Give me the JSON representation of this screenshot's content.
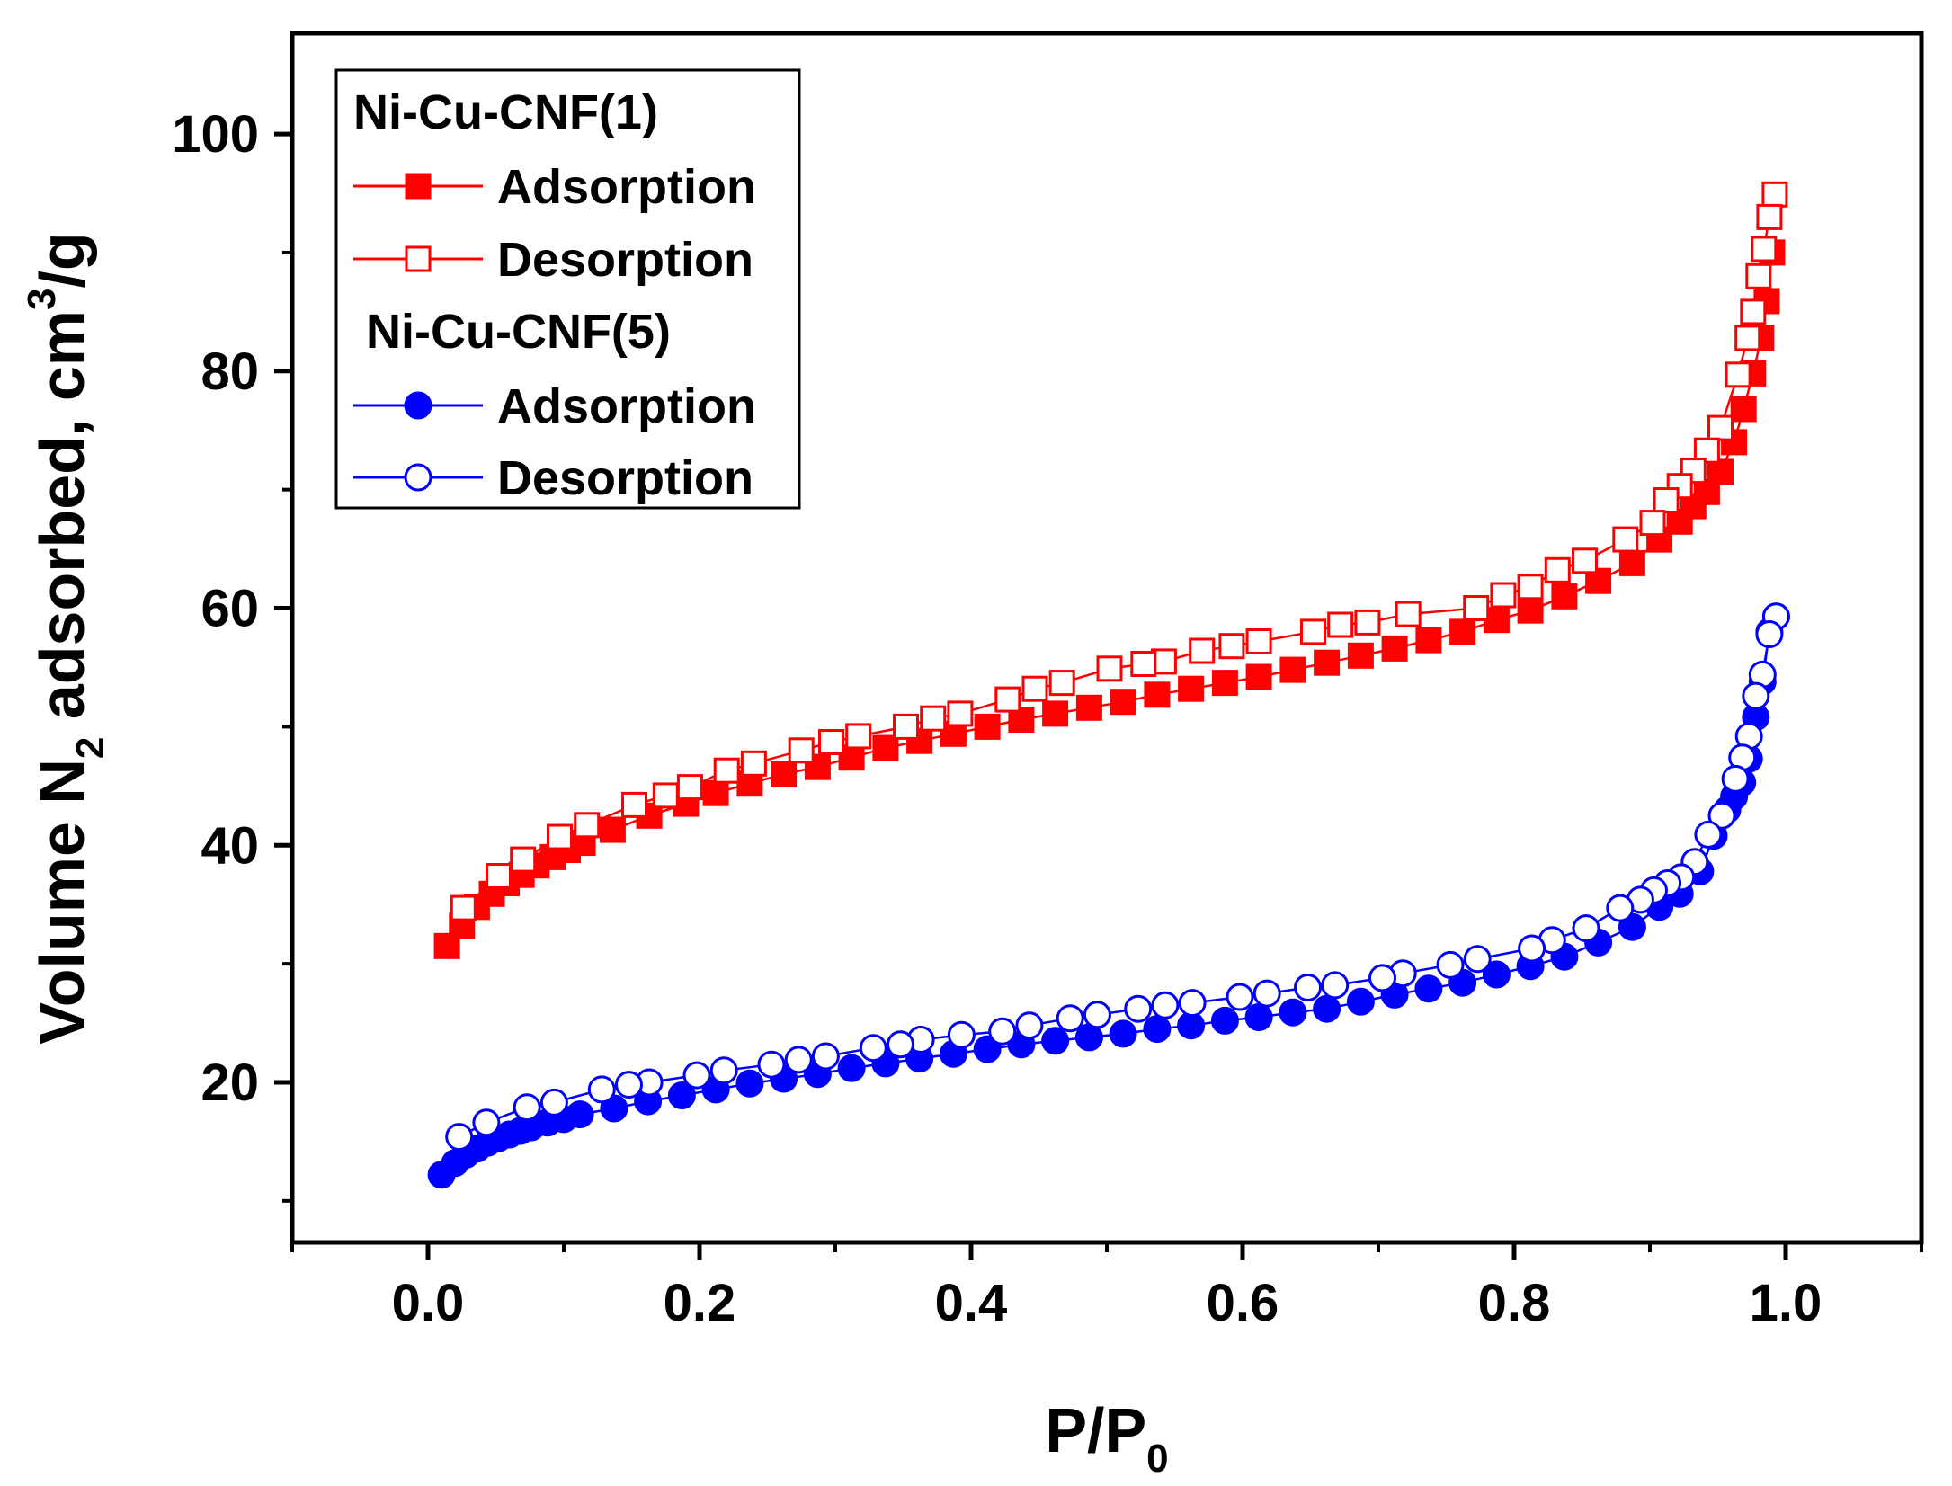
{
  "chart_data": {
    "type": "line",
    "title": "",
    "xlabel": {
      "main": "P/P",
      "sub": "0"
    },
    "ylabel": {
      "pre": "Volume N",
      "sub": "2",
      "mid": " adsorbed, cm",
      "sup": "3",
      "post": "/g"
    },
    "xlim": [
      -0.1,
      1.1
    ],
    "ylim": [
      6.5,
      108.5
    ],
    "x_ticks": [
      0.0,
      0.2,
      0.4,
      0.6,
      0.8,
      1.0
    ],
    "x_tick_labels": [
      "0.0",
      "0.2",
      "0.4",
      "0.6",
      "0.8",
      "1.0"
    ],
    "y_ticks": [
      20,
      40,
      60,
      80,
      100
    ],
    "y_tick_labels": [
      "20",
      "40",
      "60",
      "80",
      "100"
    ],
    "y_minor_ticks": [
      10,
      30,
      50,
      70,
      90
    ],
    "legend": {
      "placement": "top-left",
      "groups": [
        {
          "title": "Ni-Cu-CNF(1)",
          "entries": [
            "Adsorption",
            "Desorption"
          ]
        },
        {
          "title": "Ni-Cu-CNF(5)",
          "entries": [
            "Adsorption",
            "Desorption"
          ]
        }
      ]
    },
    "series": [
      {
        "name": "Ni-Cu-CNF(1) Adsorption",
        "color": "#ff0000",
        "marker": "square",
        "filled": true,
        "x": [
          0.014,
          0.025,
          0.036,
          0.047,
          0.058,
          0.069,
          0.08,
          0.092,
          0.103,
          0.114,
          0.136,
          0.163,
          0.19,
          0.212,
          0.237,
          0.262,
          0.287,
          0.312,
          0.337,
          0.362,
          0.387,
          0.412,
          0.437,
          0.462,
          0.487,
          0.512,
          0.537,
          0.562,
          0.587,
          0.612,
          0.637,
          0.662,
          0.687,
          0.712,
          0.737,
          0.762,
          0.787,
          0.812,
          0.837,
          0.862,
          0.887,
          0.907,
          0.922,
          0.932,
          0.942,
          0.952,
          0.962,
          0.969,
          0.976,
          0.982,
          0.986,
          0.99
        ],
        "y": [
          31.5,
          33.2,
          34.8,
          35.9,
          36.8,
          37.5,
          38.3,
          39.0,
          39.6,
          40.2,
          41.3,
          42.5,
          43.5,
          44.4,
          45.2,
          46.0,
          46.6,
          47.4,
          48.2,
          48.8,
          49.4,
          50.0,
          50.6,
          51.1,
          51.6,
          52.1,
          52.7,
          53.2,
          53.7,
          54.2,
          54.8,
          55.4,
          56.0,
          56.6,
          57.3,
          58.0,
          59.0,
          59.8,
          61.0,
          62.3,
          63.8,
          65.8,
          67.3,
          68.6,
          69.8,
          71.5,
          74.0,
          76.8,
          79.8,
          82.8,
          85.9,
          90.0
        ]
      },
      {
        "name": "Ni-Cu-CNF(1) Desorption",
        "color": "#ff0000",
        "marker": "square",
        "filled": false,
        "x": [
          0.992,
          0.988,
          0.984,
          0.98,
          0.976,
          0.972,
          0.965,
          0.952,
          0.942,
          0.932,
          0.922,
          0.912,
          0.902,
          0.882,
          0.852,
          0.832,
          0.812,
          0.792,
          0.772,
          0.722,
          0.692,
          0.672,
          0.652,
          0.612,
          0.592,
          0.57,
          0.542,
          0.527,
          0.502,
          0.467,
          0.447,
          0.427,
          0.392,
          0.372,
          0.352,
          0.317,
          0.297,
          0.275,
          0.24,
          0.22,
          0.193,
          0.175,
          0.152,
          0.117,
          0.097,
          0.07,
          0.052,
          0.026
        ],
        "y": [
          94.9,
          93.0,
          90.3,
          88.0,
          85.0,
          82.8,
          79.7,
          75.2,
          73.3,
          71.6,
          70.3,
          69.1,
          67.2,
          65.8,
          64.0,
          63.2,
          61.8,
          61.1,
          60.0,
          59.5,
          58.8,
          58.6,
          58.0,
          57.2,
          56.8,
          56.4,
          55.5,
          55.3,
          54.9,
          53.7,
          53.2,
          52.3,
          51.1,
          50.7,
          50.0,
          49.2,
          48.7,
          48.0,
          46.9,
          46.3,
          44.9,
          44.2,
          43.4,
          41.7,
          40.7,
          38.8,
          37.4,
          34.7
        ]
      },
      {
        "name": "Ni-Cu-CNF(5) Adsorption",
        "color": "#0000ff",
        "marker": "circle",
        "filled": true,
        "x": [
          0.01,
          0.02,
          0.028,
          0.036,
          0.044,
          0.052,
          0.06,
          0.068,
          0.076,
          0.088,
          0.1,
          0.112,
          0.137,
          0.162,
          0.187,
          0.212,
          0.237,
          0.262,
          0.287,
          0.312,
          0.337,
          0.362,
          0.387,
          0.412,
          0.437,
          0.462,
          0.487,
          0.512,
          0.537,
          0.562,
          0.587,
          0.612,
          0.637,
          0.662,
          0.687,
          0.712,
          0.737,
          0.762,
          0.787,
          0.812,
          0.837,
          0.862,
          0.887,
          0.907,
          0.922,
          0.937,
          0.947,
          0.957,
          0.962,
          0.968,
          0.973,
          0.978,
          0.983,
          0.988,
          0.993
        ],
        "y": [
          12.2,
          13.2,
          13.9,
          14.4,
          14.9,
          15.3,
          15.6,
          15.9,
          16.2,
          16.6,
          16.9,
          17.3,
          17.8,
          18.4,
          18.9,
          19.4,
          19.9,
          20.3,
          20.7,
          21.2,
          21.6,
          22.0,
          22.4,
          22.8,
          23.2,
          23.5,
          23.8,
          24.1,
          24.5,
          24.8,
          25.2,
          25.5,
          25.9,
          26.2,
          26.8,
          27.4,
          27.9,
          28.4,
          29.1,
          29.8,
          30.6,
          31.8,
          33.1,
          34.8,
          35.9,
          37.8,
          40.8,
          43.0,
          44.1,
          45.3,
          47.3,
          50.8,
          53.8,
          58.0,
          59.3
        ]
      },
      {
        "name": "Ni-Cu-CNF(5) Desorption",
        "color": "#0000ff",
        "marker": "circle",
        "filled": false,
        "x": [
          0.993,
          0.988,
          0.983,
          0.978,
          0.973,
          0.968,
          0.963,
          0.953,
          0.943,
          0.933,
          0.923,
          0.913,
          0.903,
          0.893,
          0.878,
          0.853,
          0.828,
          0.813,
          0.773,
          0.753,
          0.718,
          0.703,
          0.668,
          0.648,
          0.618,
          0.598,
          0.563,
          0.543,
          0.523,
          0.493,
          0.473,
          0.443,
          0.423,
          0.393,
          0.363,
          0.348,
          0.328,
          0.293,
          0.273,
          0.253,
          0.218,
          0.198,
          0.163,
          0.148,
          0.128,
          0.093,
          0.073,
          0.043,
          0.023
        ],
        "y": [
          59.3,
          57.8,
          54.4,
          52.6,
          49.2,
          47.4,
          45.6,
          42.5,
          40.9,
          38.6,
          37.3,
          36.8,
          36.2,
          35.4,
          34.7,
          33.0,
          32.0,
          31.3,
          30.4,
          29.9,
          29.2,
          28.8,
          28.2,
          28.0,
          27.5,
          27.2,
          26.7,
          26.5,
          26.2,
          25.7,
          25.4,
          24.8,
          24.3,
          24.0,
          23.6,
          23.2,
          22.9,
          22.2,
          21.9,
          21.5,
          21.0,
          20.6,
          20.0,
          19.8,
          19.4,
          18.3,
          17.9,
          16.6,
          15.4
        ]
      }
    ]
  }
}
